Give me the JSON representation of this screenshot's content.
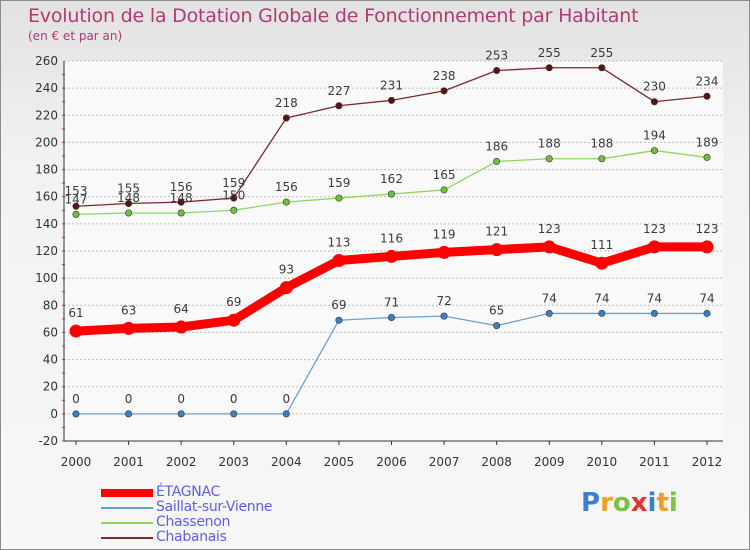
{
  "chart_data": {
    "type": "line",
    "title": "Evolution de la Dotation Globale de Fonctionnement par Habitant",
    "subtitle": "(en € et par an)",
    "xlabel": "",
    "ylabel": "",
    "ylim": [
      -20,
      260
    ],
    "ytick_step": 20,
    "categories": [
      "2000",
      "2001",
      "2002",
      "2003",
      "2004",
      "2005",
      "2006",
      "2007",
      "2008",
      "2009",
      "2010",
      "2011",
      "2012"
    ],
    "series": [
      {
        "name": "Chabanais",
        "color": "#7a2a2a",
        "marker": "#5a1212",
        "values": [
          153,
          155,
          156,
          159,
          218,
          227,
          231,
          238,
          253,
          255,
          255,
          230,
          234
        ],
        "labels": [
          "153",
          "155",
          "156",
          "159",
          "218",
          "227",
          "231",
          "238",
          "253",
          "255",
          "255",
          "230",
          "234"
        ]
      },
      {
        "name": "Chassenon",
        "color": "#8fd45e",
        "marker": "#6cc23a",
        "values": [
          147,
          148,
          148,
          150,
          156,
          159,
          162,
          165,
          186,
          188,
          188,
          194,
          189
        ],
        "labels": [
          "147",
          "148",
          "148",
          "150",
          "156",
          "159",
          "162",
          "165",
          "186",
          "188",
          "188",
          "194",
          "189"
        ]
      },
      {
        "name": "ÉTAGNAC",
        "color": "#ff0000",
        "marker": "#ff0000",
        "values": [
          61,
          63,
          64,
          69,
          93,
          113,
          116,
          119,
          121,
          123,
          111,
          123,
          123
        ],
        "labels": [
          "61",
          "63",
          "64",
          "69",
          "93",
          "113",
          "116",
          "119",
          "121",
          "123",
          "111",
          "123",
          "123"
        ]
      },
      {
        "name": "Saillat-sur-Vienne",
        "color": "#6d9fcd",
        "marker": "#3b80c4",
        "values": [
          0,
          0,
          0,
          0,
          0,
          69,
          71,
          72,
          65,
          74,
          74,
          74,
          74
        ],
        "labels": [
          "0",
          "0",
          "0",
          "0",
          "0",
          "69",
          "71",
          "72",
          "65",
          "74",
          "74",
          "74",
          "74"
        ]
      }
    ],
    "legend": {
      "position": "bottom-left",
      "entries": [
        {
          "name": "ÉTAGNAC",
          "color": "#ff0000"
        },
        {
          "name": "Saillat-sur-Vienne",
          "color": "#6d9fcd"
        },
        {
          "name": "Chassenon",
          "color": "#8fd45e"
        },
        {
          "name": "Chabanais",
          "color": "#7a2a2a"
        }
      ]
    }
  },
  "logo": {
    "text": "Proxiti",
    "letters": [
      {
        "ch": "P",
        "color": "#3b7fd0"
      },
      {
        "ch": "r",
        "color": "#f0a020"
      },
      {
        "ch": "o",
        "color": "#7cc242"
      },
      {
        "ch": "x",
        "color": "#e8302c"
      },
      {
        "ch": "i",
        "color": "#3b7fd0"
      },
      {
        "ch": "t",
        "color": "#f0a020"
      },
      {
        "ch": "i",
        "color": "#7cc242"
      }
    ]
  }
}
